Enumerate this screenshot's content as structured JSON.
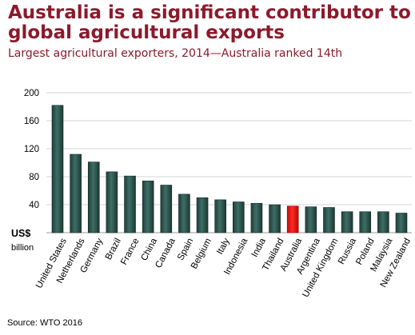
{
  "header": {
    "title": "Australia is a significant contributor to global agricultural exports",
    "subtitle": "Largest agricultural exporters, 2014—Australia ranked 14th"
  },
  "footer": {
    "source": "Source: WTO 2016"
  },
  "chart_data": {
    "type": "bar",
    "categories": [
      "United States",
      "Netherlands",
      "Germany",
      "Brazil",
      "France",
      "China",
      "Canada",
      "Spain",
      "Belgium",
      "Italy",
      "Indonesia",
      "India",
      "Thailand",
      "Australia",
      "Argentina",
      "United Kingdom",
      "Russia",
      "Poland",
      "Malaysia",
      "New Zealand"
    ],
    "values": [
      182,
      112,
      101,
      87,
      81,
      74,
      68,
      55,
      50,
      47,
      44,
      42,
      40,
      38,
      37,
      36,
      30,
      30,
      30,
      28
    ],
    "highlight_category": "Australia",
    "colors": {
      "bar": "#2f5a52",
      "bar_highlight": "#e8140f",
      "grid": "#d4d4d4"
    },
    "ylabel_lines": [
      "US$",
      "billion"
    ],
    "yticks": [
      40,
      80,
      120,
      160,
      200
    ],
    "ylim": [
      0,
      200
    ],
    "grid": true
  }
}
